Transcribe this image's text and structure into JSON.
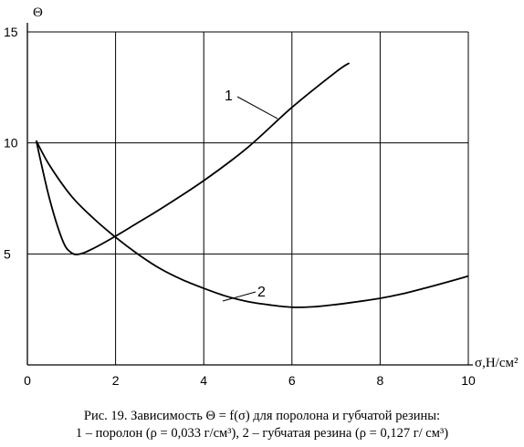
{
  "chart_data": {
    "type": "line",
    "ylabel": "Θ",
    "xlabel": "σ,Н/см²",
    "xlim": [
      0,
      10
    ],
    "ylim": [
      0,
      15
    ],
    "x_ticks": [
      "0",
      "2",
      "4",
      "6",
      "8",
      "10"
    ],
    "y_ticks": [
      "5",
      "10",
      "15"
    ],
    "grid": true,
    "series": [
      {
        "name": "1",
        "x": [
          0.2,
          0.5,
          0.8,
          1.0,
          1.2,
          1.5,
          2.0,
          2.5,
          3.0,
          4.0,
          5.0,
          6.0,
          7.0,
          7.3
        ],
        "y": [
          10.1,
          7.5,
          5.6,
          5.05,
          5.0,
          5.25,
          5.8,
          6.4,
          7.0,
          8.3,
          9.8,
          11.6,
          13.2,
          13.6
        ]
      },
      {
        "name": "2",
        "x": [
          0.2,
          0.5,
          1.0,
          1.5,
          2.0,
          2.5,
          3.0,
          3.5,
          4.0,
          4.5,
          5.0,
          5.5,
          6.0,
          6.5,
          7.0,
          7.5,
          8.0,
          8.5,
          9.0,
          9.5,
          10.0
        ],
        "y": [
          10.1,
          9.0,
          7.6,
          6.6,
          5.75,
          5.0,
          4.35,
          3.85,
          3.45,
          3.1,
          2.85,
          2.7,
          2.6,
          2.62,
          2.72,
          2.85,
          3.0,
          3.2,
          3.45,
          3.72,
          4.0
        ]
      }
    ],
    "labels": [
      "1",
      "2"
    ]
  },
  "caption": {
    "line1": "Рис. 19. Зависимость Θ = f(σ) для поролона и губчатой резины:",
    "line2": "1 – поролон (ρ = 0,033 г/см³), 2 – губчатая резина (ρ = 0,127 г/ см³)"
  },
  "colors": {
    "line": "#000000",
    "grid": "#000000"
  }
}
